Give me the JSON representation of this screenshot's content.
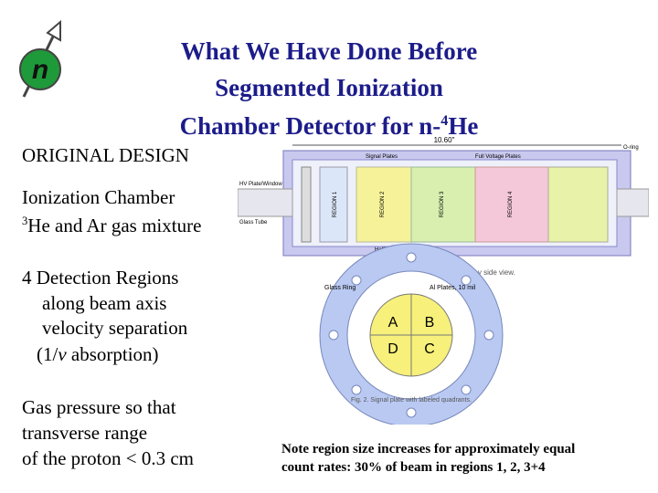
{
  "title": {
    "line1": "What We Have Done Before",
    "line2": "Segmented Ionization",
    "line3": {
      "text": "Chamber Detector for n-",
      "sup": "4",
      "rest": "He"
    }
  },
  "body": {
    "heading": "ORIGINAL DESIGN",
    "chamber": "Ionization Chamber",
    "gas": {
      "sup": "3",
      "text": "He and Ar gas mixture"
    },
    "regions": [
      "4 Detection Regions",
      "along beam axis",
      "velocity separation"
    ],
    "absorption": {
      "pre": "(1/",
      "italic": "v",
      "post": " absorption)"
    },
    "pressure": [
      "Gas pressure so that",
      "transverse range",
      "of the proton < 0.3 cm"
    ]
  },
  "note": [
    "Note region size increases for approximately equal",
    "count rates:  30% of beam in regions 1, 2, 3+4"
  ],
  "figure1": {
    "dimension": "10.60\"",
    "labels": [
      "Signal Plates",
      "Full Voltage Plates",
      "HV Plate/Window",
      "Glass Tube",
      "Half Voltage Rings",
      "O-ring"
    ],
    "regions": [
      "REGION 1",
      "REGION 2",
      "REGION 3",
      "REGION 4"
    ],
    "caption": "Fig. 1. Detector Cut-away side view."
  },
  "figure2": {
    "labels": [
      "Glass Ring",
      "Al Plates, 10 mil"
    ],
    "quadrants": [
      "A",
      "B",
      "D",
      "C"
    ],
    "caption": "Fig. 2. Signal plate with labeled quadrants."
  }
}
